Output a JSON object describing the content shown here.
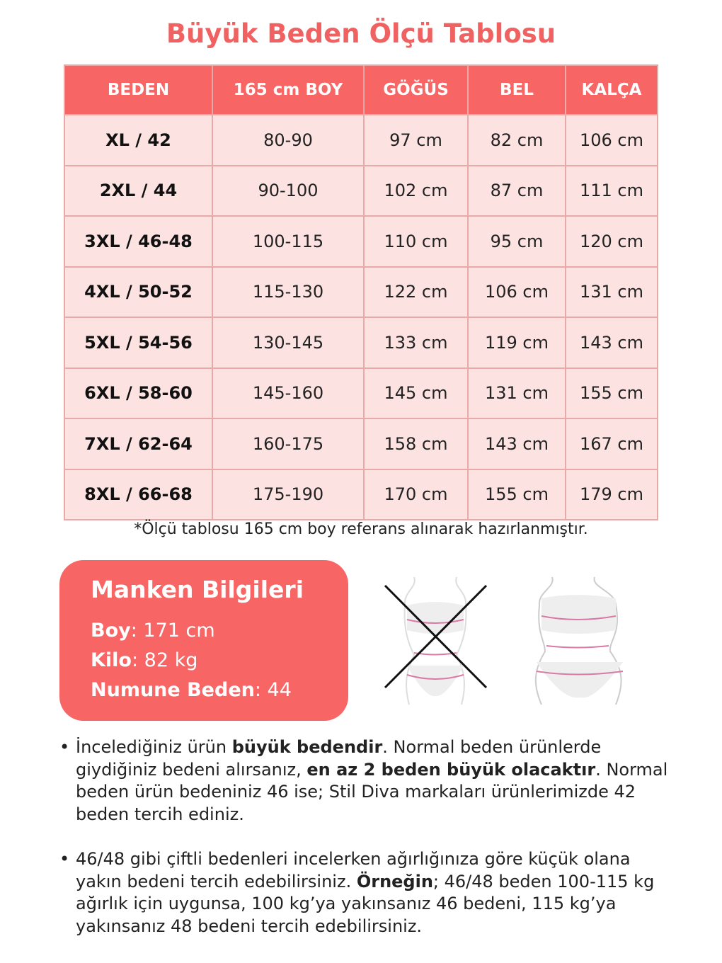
{
  "title": "Büyük Beden Ölçü Tablosu",
  "colors": {
    "accent": "#f76565",
    "row_bg": "#fde2e2",
    "border": "#eaa9a9"
  },
  "table": {
    "headers": [
      "BEDEN",
      "165 cm BOY",
      "GÖĞÜS",
      "BEL",
      "KALÇA"
    ],
    "rows": [
      [
        "XL / 42",
        "80-90",
        "97 cm",
        "82 cm",
        "106 cm"
      ],
      [
        "2XL / 44",
        "90-100",
        "102 cm",
        "87 cm",
        "111 cm"
      ],
      [
        "3XL / 46-48",
        "100-115",
        "110 cm",
        "95 cm",
        "120 cm"
      ],
      [
        "4XL / 50-52",
        "115-130",
        "122 cm",
        "106 cm",
        "131 cm"
      ],
      [
        "5XL / 54-56",
        "130-145",
        "133 cm",
        "119 cm",
        "143 cm"
      ],
      [
        "6XL / 58-60",
        "145-160",
        "145 cm",
        "131 cm",
        "155 cm"
      ],
      [
        "7XL / 62-64",
        "160-175",
        "158 cm",
        "143 cm",
        "167 cm"
      ],
      [
        "8XL / 66-68",
        "175-190",
        "170 cm",
        "155 cm",
        "179 cm"
      ]
    ]
  },
  "note": "*Ölçü tablosu 165 cm boy referans alınarak hazırlanmıştır.",
  "manken": {
    "title": "Manken Bilgileri",
    "boy_label": "Boy",
    "boy": ": 171 cm",
    "kilo_label": "Kilo",
    "kilo": ": 82 kg",
    "numune_label": "Numune Beden",
    "numune": ": 44"
  },
  "bullets": [
    [
      "İncelediğiniz ürün ",
      "büyük bedendir",
      ". Normal beden ürünlerde giydiğiniz bedeni alırsanız, ",
      "en az 2 beden büyük olacaktır",
      ". Normal beden ürün bedeniniz 46 ise; Stil Diva markaları ürünlerimizde 42 beden tercih ediniz."
    ],
    [
      "46/48 gibi çiftli bedenleri incelerken ağırlığınıza göre küçük olana yakın bedeni tercih edebilirsiniz. ",
      "Örneğin",
      "; 46/48 beden 100-115 kg ağırlık için uygunsa, 100 kg’ya yakınsanız 46 bedeni, 115 kg’ya yakınsanız 48 bedeni tercih edebilirsiniz."
    ]
  ]
}
